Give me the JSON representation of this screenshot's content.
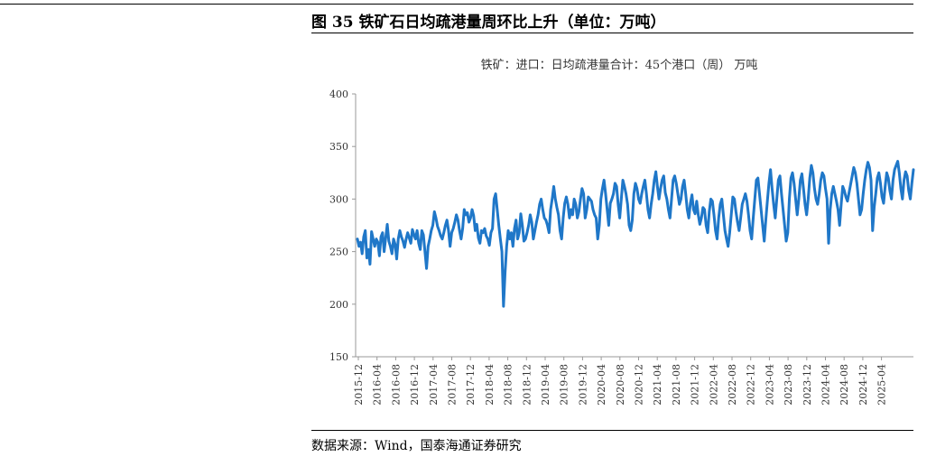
{
  "figure": {
    "title": "图 35 铁矿石日均疏港量周环比上升（单位：万吨）",
    "source": "数据来源：Wind，国泰海通证券研究"
  },
  "colors": {
    "line": "#1f77c8",
    "axis": "#999999",
    "text": "#333333"
  },
  "chart_data": {
    "type": "line",
    "title": "铁矿：进口：日均疏港量合计：45个港口（周） 万吨",
    "xlabel": "",
    "ylabel": "",
    "ylim": [
      150,
      400
    ],
    "yticks": [
      150,
      200,
      250,
      300,
      350,
      400
    ],
    "grid": false,
    "legend": "none",
    "xticks": [
      "2015-12",
      "2016-04",
      "2016-08",
      "2016-12",
      "2017-04",
      "2017-08",
      "2017-12",
      "2018-04",
      "2018-08",
      "2018-12",
      "2019-04",
      "2019-08",
      "2019-12",
      "2020-04",
      "2020-08",
      "2020-12",
      "2021-04",
      "2021-08",
      "2021-12",
      "2022-04",
      "2022-08",
      "2022-12",
      "2023-04",
      "2023-08",
      "2023-12",
      "2024-04",
      "2024-08",
      "2024-12",
      "2025-04"
    ],
    "series": [
      {
        "values": [
          262,
          255,
          259,
          248,
          264,
          270,
          244,
          252,
          238,
          269,
          262,
          255,
          262,
          259,
          246,
          264,
          268,
          250,
          263,
          276,
          260,
          255,
          248,
          262,
          257,
          243,
          262,
          270,
          264,
          260,
          254,
          262,
          268,
          263,
          258,
          271,
          266,
          262,
          270,
          258,
          252,
          270,
          266,
          250,
          234,
          255,
          262,
          270,
          275,
          288,
          282,
          274,
          270,
          265,
          262,
          268,
          275,
          280,
          270,
          255,
          268,
          272,
          278,
          285,
          280,
          270,
          262,
          272,
          290,
          285,
          287,
          278,
          282,
          290,
          284,
          270,
          276,
          263,
          258,
          270,
          268,
          272,
          265,
          262,
          256,
          268,
          272,
          300,
          305,
          290,
          275,
          262,
          250,
          198,
          230,
          255,
          270,
          262,
          268,
          255,
          272,
          280,
          262,
          268,
          286,
          275,
          260,
          262,
          268,
          275,
          285,
          278,
          262,
          270,
          278,
          285,
          295,
          300,
          290,
          282,
          280,
          275,
          268,
          290,
          300,
          312,
          300,
          292,
          285,
          270,
          262,
          282,
          296,
          302,
          295,
          282,
          290,
          285,
          300,
          295,
          282,
          288,
          300,
          310,
          305,
          282,
          290,
          302,
          300,
          298,
          290,
          285,
          282,
          262,
          275,
          300,
          310,
          318,
          305,
          290,
          275,
          296,
          300,
          305,
          315,
          312,
          295,
          282,
          300,
          318,
          312,
          305,
          295,
          275,
          270,
          280,
          305,
          315,
          310,
          300,
          296,
          305,
          312,
          318,
          305,
          290,
          282,
          295,
          305,
          318,
          326,
          312,
          300,
          310,
          318,
          322,
          306,
          300,
          290,
          282,
          300,
          318,
          322,
          315,
          305,
          295,
          300,
          312,
          318,
          305,
          290,
          282,
          296,
          304,
          290,
          286,
          298,
          285,
          276,
          282,
          292,
          290,
          275,
          268,
          288,
          300,
          298,
          285,
          270,
          262,
          282,
          295,
          300,
          285,
          270,
          262,
          255,
          268,
          285,
          302,
          300,
          288,
          278,
          270,
          282,
          295,
          300,
          305,
          298,
          285,
          270,
          262,
          282,
          300,
          318,
          320,
          305,
          290,
          275,
          260,
          280,
          298,
          315,
          328,
          310,
          295,
          282,
          300,
          318,
          322,
          305,
          290,
          275,
          260,
          268,
          300,
          320,
          325,
          315,
          300,
          285,
          300,
          318,
          324,
          310,
          295,
          285,
          300,
          320,
          332,
          325,
          310,
          300,
          295,
          305,
          318,
          325,
          322,
          310,
          300,
          258,
          290,
          305,
          312,
          305,
          298,
          290,
          275,
          295,
          312,
          308,
          302,
          298,
          306,
          314,
          322,
          330,
          325,
          315,
          300,
          285,
          290,
          305,
          318,
          328,
          335,
          330,
          318,
          270,
          292,
          305,
          320,
          325,
          315,
          302,
          296,
          312,
          325,
          320,
          308,
          300,
          318,
          328,
          332,
          336,
          325,
          310,
          300,
          318,
          326,
          322,
          308,
          300,
          315,
          328
        ]
      }
    ]
  }
}
